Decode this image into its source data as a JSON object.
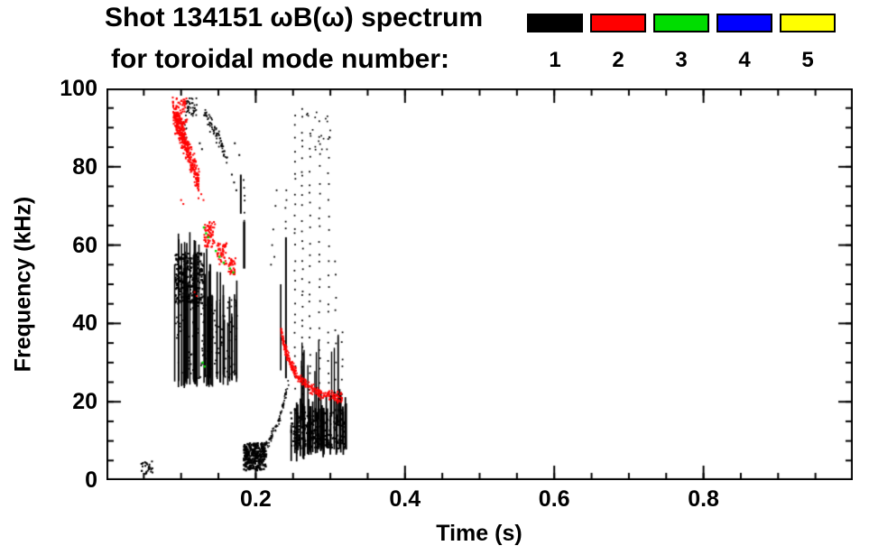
{
  "chart_data": {
    "type": "scatter",
    "title": "Shot 134151 ωB(ω) spectrum",
    "subtitle": "for toroidal mode number:",
    "xlabel": "Time (s)",
    "ylabel": "Frequency (kHz)",
    "xlim": [
      0,
      1.0
    ],
    "ylim": [
      0,
      100
    ],
    "xticks": [
      0.2,
      0.4,
      0.6,
      0.8
    ],
    "xtick_labels": [
      "0.2",
      "0.4",
      "0.6",
      "0.8"
    ],
    "yticks": [
      0,
      20,
      40,
      60,
      80,
      100
    ],
    "ytick_labels": [
      "0",
      "20",
      "40",
      "60",
      "80",
      "100"
    ],
    "xminor": 0.05,
    "yminor": 5,
    "grid": false,
    "legend_position": "top-right",
    "series": [
      {
        "name": "1",
        "color": "#000000",
        "clusters": [
          {
            "kind": "blob",
            "x": [
              0.046,
              0.063
            ],
            "y": [
              1.5,
              5
            ],
            "n": 28,
            "size": 2
          },
          {
            "kind": "vlines",
            "x": [
              0.091,
              0.176
            ],
            "count": 52,
            "ybot": [
              24,
              26
            ],
            "ytop": [
              61,
              44
            ],
            "jitter": 7,
            "w": 1.6
          },
          {
            "kind": "blob",
            "x": [
              0.092,
              0.13
            ],
            "y": [
              45,
              58
            ],
            "n": 260,
            "size": 2.2
          },
          {
            "kind": "blob",
            "x": [
              0.093,
              0.175
            ],
            "y": [
              26,
              46
            ],
            "n": 150,
            "size": 1.8
          },
          {
            "kind": "curve",
            "pts": [
              [
                0.131,
                93.5
              ],
              [
                0.148,
                88
              ],
              [
                0.163,
                81.5
              ]
            ],
            "thick": 2.5,
            "n": 70,
            "size": 1.8
          },
          {
            "kind": "blob",
            "x": [
              0.106,
              0.121
            ],
            "y": [
              92.5,
              97.5
            ],
            "n": 40,
            "size": 1.8
          },
          {
            "kind": "blob",
            "x": [
              0.099,
              0.108
            ],
            "y": [
              87,
              92
            ],
            "n": 16,
            "size": 1.6
          },
          {
            "kind": "points",
            "pts": [
              [
                0.125,
                86
              ],
              [
                0.128,
                84.5
              ],
              [
                0.168,
                78
              ],
              [
                0.171,
                76
              ],
              [
                0.174,
                74
              ],
              [
                0.172,
                86
              ],
              [
                0.178,
                83
              ]
            ],
            "size": 2
          },
          {
            "kind": "vseg",
            "x": 0.18,
            "y": [
              68,
              78
            ],
            "w": 2
          },
          {
            "kind": "vseg",
            "x": 0.1845,
            "y": [
              54,
              66
            ],
            "w": 2.5
          },
          {
            "kind": "dots",
            "x": 0.1845,
            "y": [
              66,
              78
            ],
            "n": 6,
            "size": 1.8
          },
          {
            "kind": "blob",
            "x": [
              0.184,
              0.214
            ],
            "y": [
              2.5,
              9.5
            ],
            "n": 240,
            "size": 2.4
          },
          {
            "kind": "curve",
            "pts": [
              [
                0.199,
                5.5
              ],
              [
                0.217,
                9.5
              ],
              [
                0.231,
                15
              ],
              [
                0.2445,
                25.5
              ]
            ],
            "thick": 1.5,
            "n": 90,
            "size": 1.7
          },
          {
            "kind": "vseg",
            "x": 0.2335,
            "y": [
              28,
              50
            ],
            "w": 1.6
          },
          {
            "kind": "vseg",
            "x": 0.2405,
            "y": [
              26,
              62
            ],
            "w": 2
          },
          {
            "kind": "dots",
            "x": 0.2405,
            "y": [
              62,
              76
            ],
            "n": 5,
            "size": 1.8
          },
          {
            "kind": "vlines",
            "x": [
              0.246,
              0.322
            ],
            "count": 46,
            "ybot": [
              6,
              8
            ],
            "ytop": [
              17,
              21
            ],
            "jitter": 4,
            "w": 1.8
          },
          {
            "kind": "blob",
            "x": [
              0.247,
              0.32
            ],
            "y": [
              8,
              18
            ],
            "n": 260,
            "size": 2.2
          },
          {
            "kind": "vlines",
            "x": [
              0.252,
              0.312
            ],
            "count": 13,
            "ybot": [
              15,
              15
            ],
            "ytop": [
              30,
              36
            ],
            "jitter": 5,
            "w": 1.4
          },
          {
            "kind": "dots",
            "x": 0.2525,
            "y": [
              22,
              94
            ],
            "n": 26,
            "size": 1.8
          },
          {
            "kind": "dots",
            "x": 0.2625,
            "y": [
              20,
              96
            ],
            "n": 30,
            "size": 1.8
          },
          {
            "kind": "dots",
            "x": 0.2725,
            "y": [
              22,
              90
            ],
            "n": 22,
            "size": 1.8
          },
          {
            "kind": "dots",
            "x": 0.2855,
            "y": [
              20,
              93
            ],
            "n": 24,
            "size": 1.8
          },
          {
            "kind": "dots",
            "x": 0.2975,
            "y": [
              22,
              88
            ],
            "n": 18,
            "size": 1.8
          },
          {
            "kind": "dots",
            "x": 0.307,
            "y": [
              20,
              58
            ],
            "n": 9,
            "size": 1.8
          },
          {
            "kind": "dots",
            "x": 0.316,
            "y": [
              20,
              40
            ],
            "n": 6,
            "size": 1.8
          },
          {
            "kind": "blob",
            "x": [
              0.268,
              0.301
            ],
            "y": [
              84,
              96
            ],
            "n": 20,
            "size": 1.7
          },
          {
            "kind": "points",
            "pts": [
              [
                0.2205,
                55
              ],
              [
                0.222,
                60
              ],
              [
                0.2235,
                64
              ],
              [
                0.225,
                57
              ],
              [
                0.2265,
                70
              ],
              [
                0.228,
                74
              ]
            ],
            "size": 1.8
          }
        ]
      },
      {
        "name": "2",
        "color": "#ff0000",
        "clusters": [
          {
            "kind": "curve",
            "pts": [
              [
                0.089,
                95
              ],
              [
                0.096,
                90.5
              ],
              [
                0.103,
                87
              ],
              [
                0.11,
                83.5
              ],
              [
                0.117,
                80
              ],
              [
                0.124,
                75.5
              ]
            ],
            "thick": 4,
            "n": 300,
            "size": 2
          },
          {
            "kind": "blob",
            "x": [
              0.092,
              0.108
            ],
            "y": [
              88,
              97.5
            ],
            "n": 90,
            "size": 2
          },
          {
            "kind": "points",
            "pts": [
              [
                0.1,
                71.5
              ],
              [
                0.103,
                70.5
              ],
              [
                0.127,
                73
              ],
              [
                0.13,
                71.5
              ],
              [
                0.118,
                48
              ],
              [
                0.121,
                47
              ]
            ],
            "size": 2
          },
          {
            "kind": "blob",
            "x": [
              0.131,
              0.1455
            ],
            "y": [
              59.5,
              66
            ],
            "n": 70,
            "size": 2
          },
          {
            "kind": "blob",
            "x": [
              0.148,
              0.161
            ],
            "y": [
              55,
              60.5
            ],
            "n": 50,
            "size": 2
          },
          {
            "kind": "blob",
            "x": [
              0.163,
              0.173
            ],
            "y": [
              52.5,
              57
            ],
            "n": 36,
            "size": 2
          },
          {
            "kind": "curve",
            "pts": [
              [
                0.2335,
                38.5
              ],
              [
                0.238,
                34.5
              ],
              [
                0.243,
                31.5
              ],
              [
                0.249,
                28.8
              ],
              [
                0.256,
                26.8
              ],
              [
                0.264,
                25
              ],
              [
                0.273,
                23.5
              ],
              [
                0.283,
                22.4
              ],
              [
                0.294,
                21.7
              ],
              [
                0.305,
                21.3
              ],
              [
                0.316,
                21.1
              ]
            ],
            "thick": 1.6,
            "n": 340,
            "size": 1.8
          }
        ]
      },
      {
        "name": "3",
        "color": "#00dd00",
        "clusters": [
          {
            "kind": "points",
            "pts": [
              [
                0.1305,
                64.5
              ],
              [
                0.1335,
                63
              ],
              [
                0.1365,
                62
              ],
              [
                0.1465,
                58.5
              ],
              [
                0.1515,
                57
              ],
              [
                0.157,
                55.5
              ],
              [
                0.1655,
                54
              ],
              [
                0.17,
                53
              ],
              [
                0.129,
                30
              ],
              [
                0.1315,
                29
              ]
            ],
            "size": 2.4
          }
        ]
      },
      {
        "name": "4",
        "color": "#0000ff",
        "clusters": []
      },
      {
        "name": "5",
        "color": "#ffff00",
        "clusters": []
      }
    ]
  }
}
